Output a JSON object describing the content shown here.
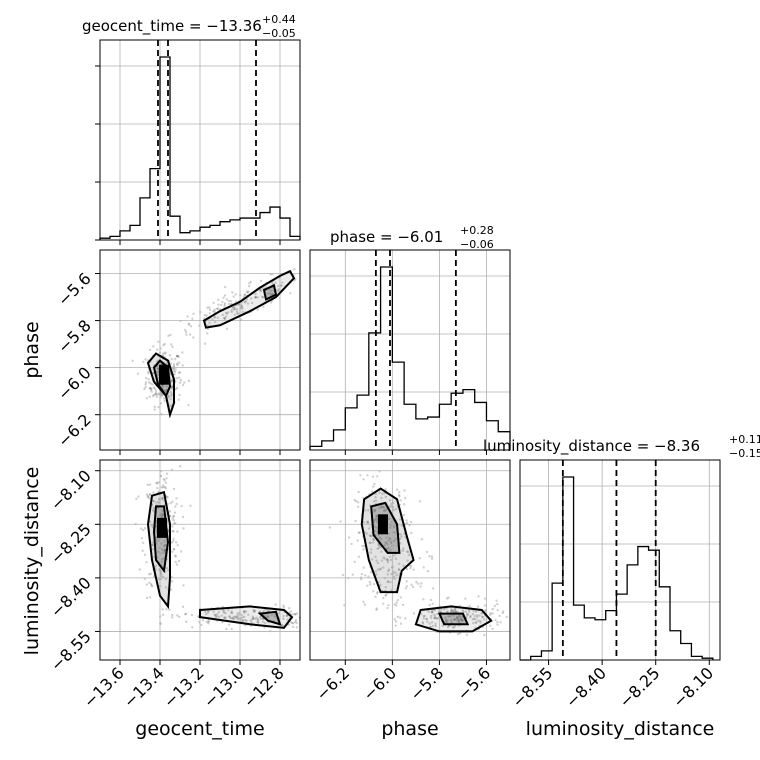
{
  "chart_data": {
    "type": "corner",
    "parameters": [
      {
        "name": "geocent_time",
        "label": "geocent_time",
        "range": [
          -13.7,
          -12.7
        ],
        "ticks": [
          -13.6,
          -13.4,
          -13.2,
          -13.0,
          -12.8
        ],
        "tick_labels": [
          "−13.6",
          "−13.4",
          "−13.2",
          "−13.0",
          "−12.8"
        ],
        "title_main": "geocent_time = −13.36",
        "title_sup": "+0.44",
        "title_sub": "−0.05",
        "median": -13.36,
        "q16": -13.41,
        "q84": -12.92
      },
      {
        "name": "phase",
        "label": "phase",
        "range": [
          -6.35,
          -5.5
        ],
        "ticks": [
          -6.2,
          -6.0,
          -5.8,
          -5.6
        ],
        "tick_labels": [
          "−6.2",
          "−6.0",
          "−5.8",
          "−5.6"
        ],
        "title_main": "phase = −6.01",
        "title_sup": "+0.28",
        "title_sub": "−0.06",
        "median": -6.01,
        "q16": -6.07,
        "q84": -5.73
      },
      {
        "name": "luminosity_distance",
        "label": "luminosity_distance",
        "range": [
          -8.63,
          -8.07
        ],
        "ticks": [
          -8.55,
          -8.4,
          -8.25,
          -8.1
        ],
        "tick_labels": [
          "−8.55",
          "−8.40",
          "−8.25",
          "−8.10"
        ],
        "title_main": "luminosity_distance = −8.36",
        "title_sup": "+0.11",
        "title_sub": "−0.15",
        "median": -8.36,
        "q16": -8.51,
        "q84": -8.25
      }
    ],
    "histograms": [
      {
        "param": "geocent_time",
        "bin_edges": [
          -13.7,
          -13.65,
          -13.6,
          -13.55,
          -13.5,
          -13.45,
          -13.4,
          -13.35,
          -13.3,
          -13.25,
          -13.2,
          -13.15,
          -13.1,
          -13.05,
          -13.0,
          -12.95,
          -12.9,
          -12.85,
          -12.8,
          -12.75,
          -12.7
        ],
        "counts": [
          0.01,
          0.02,
          0.05,
          0.08,
          0.23,
          0.39,
          1.0,
          0.13,
          0.04,
          0.05,
          0.07,
          0.08,
          0.1,
          0.11,
          0.12,
          0.12,
          0.15,
          0.18,
          0.12,
          0.02
        ]
      },
      {
        "param": "phase",
        "bin_edges": [
          -6.35,
          -6.3,
          -6.25,
          -6.2,
          -6.15,
          -6.1,
          -6.05,
          -6.0,
          -5.95,
          -5.9,
          -5.85,
          -5.8,
          -5.75,
          -5.7,
          -5.65,
          -5.6,
          -5.55,
          -5.5
        ],
        "counts": [
          0.02,
          0.05,
          0.11,
          0.23,
          0.3,
          0.64,
          1.0,
          0.48,
          0.25,
          0.17,
          0.18,
          0.25,
          0.31,
          0.33,
          0.26,
          0.16,
          0.1
        ]
      },
      {
        "param": "luminosity_distance",
        "bin_edges": [
          -8.63,
          -8.6,
          -8.57,
          -8.54,
          -8.51,
          -8.48,
          -8.45,
          -8.42,
          -8.39,
          -8.36,
          -8.33,
          -8.3,
          -8.27,
          -8.24,
          -8.21,
          -8.18,
          -8.15,
          -8.12,
          -8.09
        ],
        "counts": [
          0.0,
          0.02,
          0.05,
          0.42,
          1.0,
          0.3,
          0.23,
          0.22,
          0.27,
          0.36,
          0.52,
          0.62,
          0.6,
          0.4,
          0.16,
          0.09,
          0.02,
          0.01
        ]
      }
    ],
    "scatter_panels": [
      {
        "x": "geocent_time",
        "y": "phase",
        "clusters": [
          {
            "cx": -13.38,
            "cy": -6.04,
            "sx": 0.045,
            "sy": 0.06,
            "n": 260
          },
          {
            "cx": -13.0,
            "cy": -5.73,
            "sx": 0.17,
            "sy": 0.07,
            "n": 200,
            "corr": 0.9
          }
        ],
        "peak": {
          "x": -13.38,
          "y": -6.03
        },
        "contours": [
          [
            [
              -13.46,
              -5.98
            ],
            [
              -13.42,
              -5.94
            ],
            [
              -13.36,
              -5.97
            ],
            [
              -13.33,
              -6.05
            ],
            [
              -13.33,
              -6.15
            ],
            [
              -13.35,
              -6.2
            ],
            [
              -13.37,
              -6.12
            ],
            [
              -13.43,
              -6.06
            ]
          ],
          [
            [
              -13.43,
              -6.0
            ],
            [
              -13.4,
              -5.97
            ],
            [
              -13.36,
              -6.0
            ],
            [
              -13.35,
              -6.08
            ],
            [
              -13.37,
              -6.12
            ],
            [
              -13.41,
              -6.07
            ]
          ],
          [
            [
              -13.18,
              -5.8
            ],
            [
              -13.1,
              -5.76
            ],
            [
              -13.0,
              -5.72
            ],
            [
              -12.9,
              -5.66
            ],
            [
              -12.8,
              -5.61
            ],
            [
              -12.75,
              -5.59
            ],
            [
              -12.73,
              -5.62
            ],
            [
              -12.82,
              -5.7
            ],
            [
              -12.95,
              -5.76
            ],
            [
              -13.1,
              -5.82
            ],
            [
              -13.17,
              -5.83
            ]
          ],
          [
            [
              -12.88,
              -5.67
            ],
            [
              -12.83,
              -5.65
            ],
            [
              -12.82,
              -5.69
            ],
            [
              -12.87,
              -5.71
            ]
          ]
        ]
      },
      {
        "x": "geocent_time",
        "y": "luminosity_distance",
        "clusters": [
          {
            "cx": -13.39,
            "cy": -8.27,
            "sx": 0.045,
            "sy": 0.09,
            "n": 260
          },
          {
            "cx": -12.95,
            "cy": -8.51,
            "sx": 0.2,
            "sy": 0.015,
            "n": 220
          }
        ],
        "peak": {
          "x": -13.39,
          "y": -8.26
        },
        "contours": [
          [
            [
              -13.44,
              -8.17
            ],
            [
              -13.38,
              -8.16
            ],
            [
              -13.35,
              -8.25
            ],
            [
              -13.35,
              -8.4
            ],
            [
              -13.36,
              -8.48
            ],
            [
              -13.4,
              -8.45
            ],
            [
              -13.44,
              -8.35
            ],
            [
              -13.46,
              -8.25
            ]
          ],
          [
            [
              -13.42,
              -8.2
            ],
            [
              -13.38,
              -8.2
            ],
            [
              -13.36,
              -8.3
            ],
            [
              -13.38,
              -8.38
            ],
            [
              -13.42,
              -8.35
            ],
            [
              -13.43,
              -8.27
            ]
          ],
          [
            [
              -13.2,
              -8.49
            ],
            [
              -12.95,
              -8.48
            ],
            [
              -12.78,
              -8.49
            ],
            [
              -12.74,
              -8.51
            ],
            [
              -12.78,
              -8.54
            ],
            [
              -12.95,
              -8.53
            ],
            [
              -13.2,
              -8.51
            ]
          ],
          [
            [
              -12.9,
              -8.5
            ],
            [
              -12.82,
              -8.495
            ],
            [
              -12.8,
              -8.53
            ],
            [
              -12.86,
              -8.52
            ]
          ]
        ]
      },
      {
        "x": "phase",
        "y": "luminosity_distance",
        "clusters": [
          {
            "cx": -6.04,
            "cy": -8.27,
            "sx": 0.06,
            "sy": 0.07,
            "n": 260
          },
          {
            "cx": -5.72,
            "cy": -8.51,
            "sx": 0.1,
            "sy": 0.02,
            "n": 220
          },
          {
            "cx": -6.0,
            "cy": -8.4,
            "sx": 0.08,
            "sy": 0.05,
            "n": 80
          }
        ],
        "peak": {
          "x": -6.04,
          "y": -8.25
        },
        "contours": [
          [
            [
              -6.12,
              -8.18
            ],
            [
              -6.05,
              -8.15
            ],
            [
              -5.98,
              -8.18
            ],
            [
              -5.94,
              -8.28
            ],
            [
              -5.91,
              -8.35
            ],
            [
              -5.96,
              -8.38
            ],
            [
              -5.98,
              -8.44
            ],
            [
              -6.05,
              -8.44
            ],
            [
              -6.1,
              -8.35
            ],
            [
              -6.13,
              -8.25
            ]
          ],
          [
            [
              -6.09,
              -8.2
            ],
            [
              -6.03,
              -8.19
            ],
            [
              -5.98,
              -8.25
            ],
            [
              -5.97,
              -8.33
            ],
            [
              -6.02,
              -8.33
            ],
            [
              -6.08,
              -8.28
            ]
          ],
          [
            [
              -5.88,
              -8.49
            ],
            [
              -5.75,
              -8.48
            ],
            [
              -5.62,
              -8.49
            ],
            [
              -5.58,
              -8.52
            ],
            [
              -5.66,
              -8.55
            ],
            [
              -5.8,
              -8.55
            ],
            [
              -5.9,
              -8.53
            ]
          ],
          [
            [
              -5.8,
              -8.5
            ],
            [
              -5.7,
              -8.5
            ],
            [
              -5.68,
              -8.53
            ],
            [
              -5.78,
              -8.53
            ]
          ]
        ]
      }
    ]
  }
}
